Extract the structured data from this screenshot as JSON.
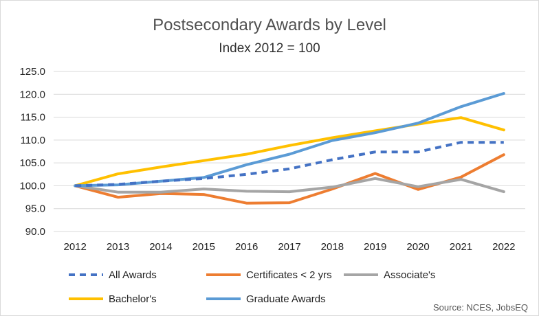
{
  "chart_data": {
    "type": "line",
    "title": "Postsecondary Awards by Level",
    "subtitle": "Index 2012 = 100",
    "xlabel": "",
    "ylabel": "",
    "x": [
      "2012",
      "2013",
      "2014",
      "2015",
      "2016",
      "2017",
      "2018",
      "2019",
      "2020",
      "2021",
      "2022"
    ],
    "ylim": [
      90,
      125
    ],
    "yticks": [
      "90.0",
      "95.0",
      "100.0",
      "105.0",
      "110.0",
      "115.0",
      "120.0",
      "125.0"
    ],
    "grid": true,
    "legend_position": "bottom",
    "source": "Source: NCES, JobsEQ",
    "series": [
      {
        "name": "All Awards",
        "color": "#4472C4",
        "dash": true,
        "values": [
          100.0,
          100.3,
          101.0,
          101.6,
          102.5,
          103.7,
          105.7,
          107.4,
          107.4,
          109.5,
          109.5
        ]
      },
      {
        "name": "Certificates < 2 yrs",
        "color": "#ED7D31",
        "dash": false,
        "values": [
          100.0,
          97.5,
          98.3,
          98.1,
          96.2,
          96.3,
          99.3,
          102.7,
          99.2,
          101.9,
          106.8
        ]
      },
      {
        "name": "Associate's",
        "color": "#A5A5A5",
        "dash": false,
        "values": [
          100.0,
          98.6,
          98.6,
          99.3,
          98.8,
          98.7,
          99.7,
          101.6,
          99.8,
          101.4,
          98.7
        ]
      },
      {
        "name": "Bachelor's",
        "color": "#FFC000",
        "dash": false,
        "values": [
          100.0,
          102.6,
          104.1,
          105.5,
          106.9,
          108.8,
          110.5,
          112.0,
          113.5,
          114.9,
          112.2
        ]
      },
      {
        "name": "Graduate Awards",
        "color": "#5B9BD5",
        "dash": false,
        "values": [
          100.0,
          100.2,
          101.0,
          101.8,
          104.6,
          106.9,
          109.9,
          111.6,
          113.7,
          117.3,
          120.2
        ]
      }
    ]
  }
}
